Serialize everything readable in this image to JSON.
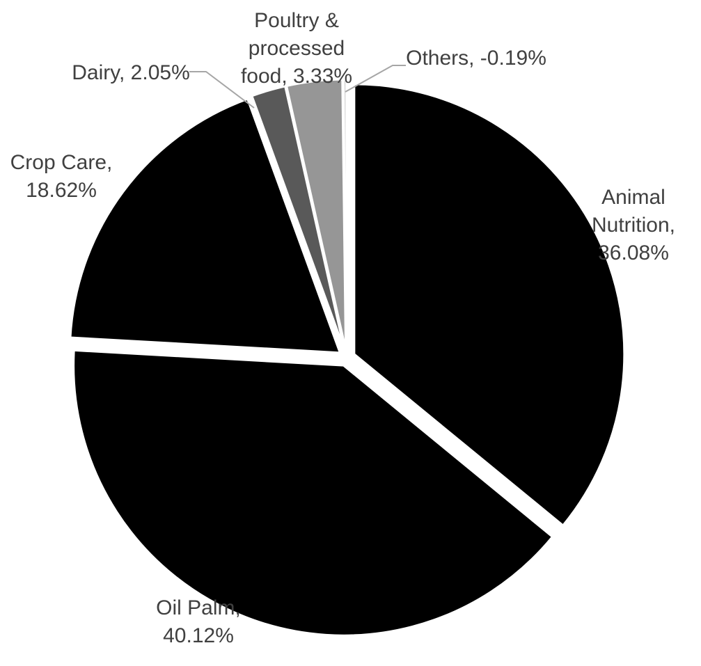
{
  "chart_data": {
    "type": "pie",
    "title": "",
    "start_angle_deg": 0,
    "direction": "clockwise",
    "exploded": true,
    "slices": [
      {
        "name": "Animal Nutrition",
        "value": 36.08,
        "label": [
          "Animal",
          "Nutrition,",
          "36.08%"
        ],
        "color": "#000000"
      },
      {
        "name": "Oil Palm",
        "value": 40.12,
        "label": [
          "Oil Palm,",
          "40.12%"
        ],
        "color": "#000000"
      },
      {
        "name": "Crop Care",
        "value": 18.62,
        "label": [
          "Crop Care,",
          "18.62%"
        ],
        "color": "#000000"
      },
      {
        "name": "Dairy",
        "value": 2.05,
        "label": [
          "Dairy, 2.05%"
        ],
        "color": "#595959"
      },
      {
        "name": "Poultry & processed food",
        "value": 3.33,
        "label": [
          "Poultry &",
          "processed",
          "food, 3.33%"
        ],
        "color": "#969696"
      },
      {
        "name": "Others",
        "value": -0.19,
        "label": [
          "Others, -0.19%"
        ],
        "color": "#d9d9d9"
      }
    ]
  }
}
